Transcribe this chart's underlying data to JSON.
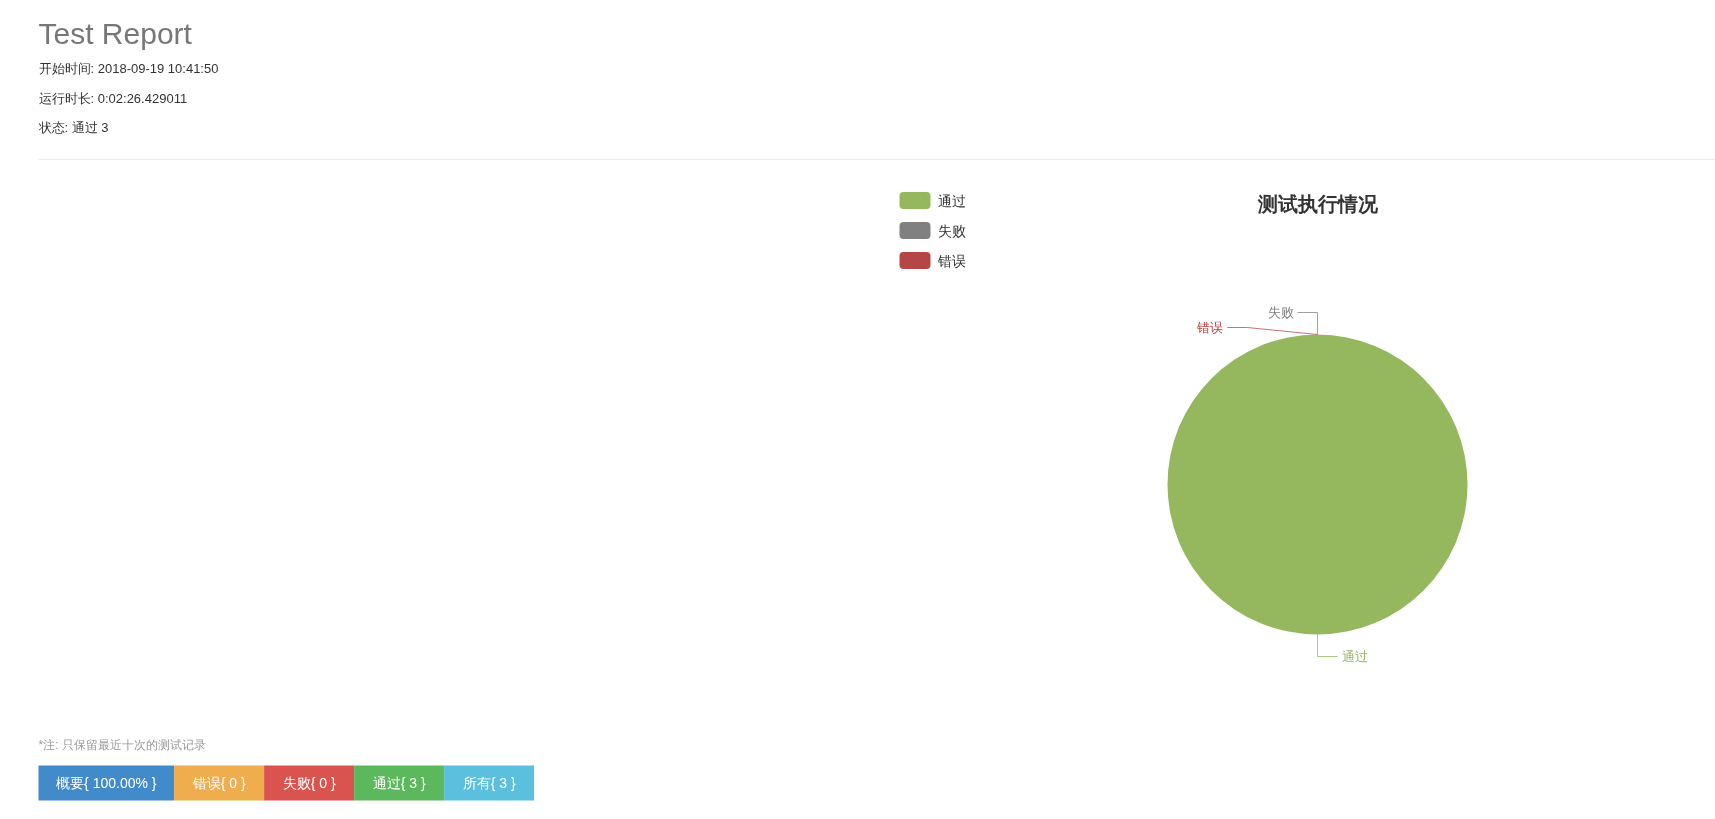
{
  "chart_data": [
    {
      "type": "other",
      "title": "Test Report",
      "annotations": [
        "开始时间: 2018-09-19 10:41:50",
        "运行时长: 0:02:26.429011",
        "状态: 通过 3"
      ]
    },
    {
      "type": "pie",
      "title": "测试执行情况",
      "categories": [
        "通过",
        "失败",
        "错误"
      ],
      "values": [
        100,
        0,
        0
      ],
      "colors": [
        "#95b75d",
        "#808080",
        "#b64645"
      ],
      "legend": "top left"
    },
    {
      "type": "other",
      "annotations": [
        "*注: 只保留最近十次的测试记录",
        "概要{ 100.00% }",
        "错误{ 0 }",
        "失败{ 0 }",
        "通过{ 3 }",
        "所有{ 3 }"
      ]
    }
  ]
}
